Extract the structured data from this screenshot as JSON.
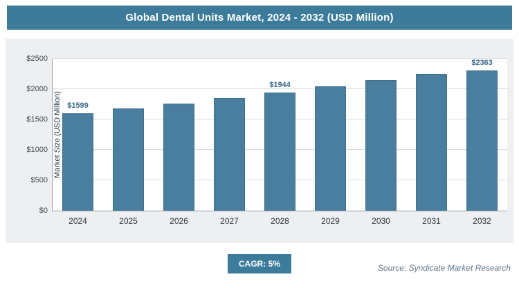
{
  "header": {
    "title": "Global Dental Units Market, 2024 - 2032 (USD Million)"
  },
  "chart_data": {
    "type": "bar",
    "title": "Global Dental Units Market, 2024 - 2032 (USD Million)",
    "categories": [
      "2024",
      "2025",
      "2026",
      "2027",
      "2028",
      "2029",
      "2030",
      "2031",
      "2032"
    ],
    "values": [
      1599,
      1679,
      1763,
      1851,
      1944,
      2041,
      2143,
      2250,
      2363
    ],
    "data_labels": [
      "$1599",
      null,
      null,
      null,
      "$1944",
      null,
      null,
      null,
      "$2363"
    ],
    "xlabel": "",
    "ylabel": "Market Size (USD Million)",
    "ylim": [
      0,
      2500
    ],
    "yticks": [
      0,
      500,
      1000,
      1500,
      2000,
      2500
    ],
    "ytick_labels": [
      "$0",
      "$500",
      "$1000",
      "$1500",
      "$2000",
      "$2500"
    ],
    "grid": true,
    "legend_position": "none",
    "bar_color": "#4A7E9E"
  },
  "footer": {
    "cagr_label": "CAGR: 5%",
    "source": "Source: Syndicate Market Research"
  },
  "colors": {
    "accent": "#3C7B9A",
    "bar": "#4A7E9E",
    "panel_background": "#EDEFF1"
  }
}
